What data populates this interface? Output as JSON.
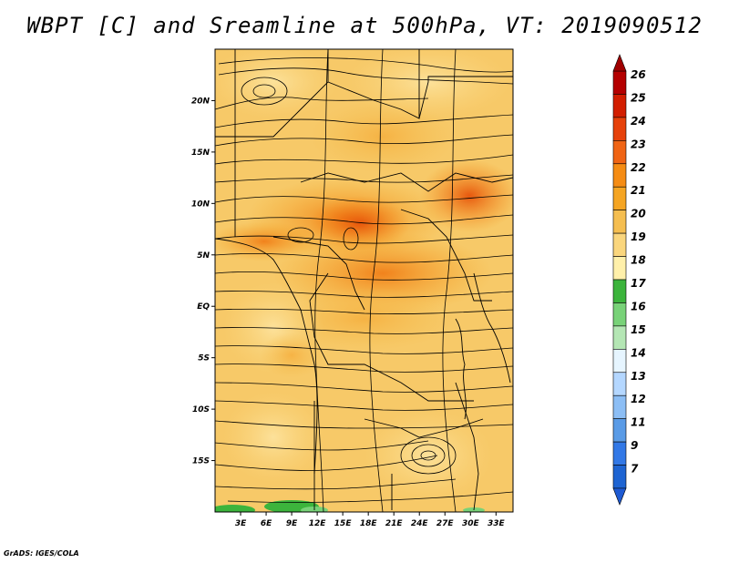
{
  "title": "WBPT [C] and Sreamline at 500hPa, VT: 2019090512",
  "footer": "GrADS: IGES/COLA",
  "map": {
    "lat_labels": [
      "20N",
      "15N",
      "10N",
      "5N",
      "EQ",
      "5S",
      "10S",
      "15S"
    ],
    "lat_values": [
      20,
      15,
      10,
      5,
      0,
      -5,
      -10,
      -15
    ],
    "lon_labels": [
      "3E",
      "6E",
      "9E",
      "12E",
      "15E",
      "18E",
      "21E",
      "24E",
      "27E",
      "30E",
      "33E"
    ],
    "lon_values": [
      3,
      6,
      9,
      12,
      15,
      18,
      21,
      24,
      27,
      30,
      33
    ],
    "lat_range": [
      -20,
      25
    ],
    "lon_range": [
      0,
      35
    ]
  },
  "colorbar": {
    "labels": [
      "26",
      "25",
      "24",
      "23",
      "22",
      "21",
      "20",
      "19",
      "18",
      "17",
      "16",
      "15",
      "14",
      "13",
      "12",
      "11",
      "9",
      "7"
    ],
    "colors": [
      "#b40000",
      "#d21e00",
      "#e6410a",
      "#f06414",
      "#f58c14",
      "#f5a523",
      "#f5be50",
      "#fad67d",
      "#fff0aa",
      "#3cb43c",
      "#78d278",
      "#b4e6b4",
      "#e6f5ff",
      "#b4d7ff",
      "#8cbef5",
      "#5a9be6",
      "#3278e6",
      "#1e64d2"
    ]
  }
}
